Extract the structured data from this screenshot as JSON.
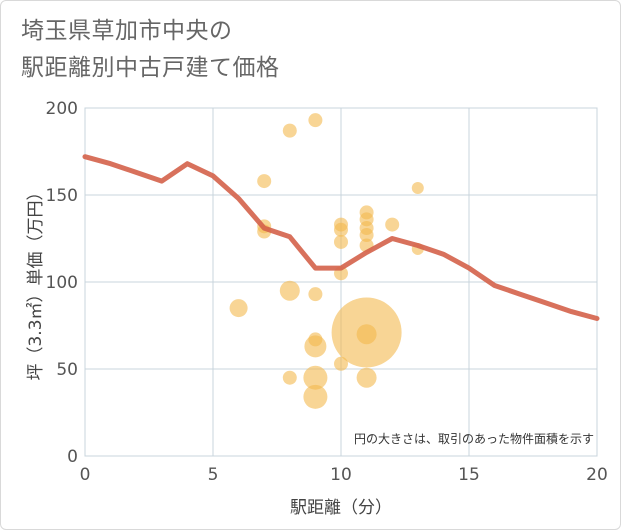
{
  "title_lines": [
    "埼玉県草加市中央の",
    "駅距離別中古戸建て価格"
  ],
  "chart_data": {
    "type": "scatter",
    "title": "埼玉県草加市中央の駅距離別中古戸建て価格",
    "xlabel": "駅距離（分）",
    "ylabel": "坪（3.3㎡）単価（万円）",
    "xlim": [
      0,
      20
    ],
    "ylim": [
      0,
      200
    ],
    "xticks": [
      0,
      5,
      10,
      15,
      20
    ],
    "yticks": [
      0,
      50,
      100,
      150,
      200
    ],
    "grid": true,
    "note": "円の大きさは、取引のあった物件面積を示す",
    "colors": {
      "points": "#f3b94f",
      "line": "#d4624a",
      "grid": "#c8d4dc"
    },
    "points": [
      {
        "x": 6,
        "y": 85,
        "size": 9
      },
      {
        "x": 7,
        "y": 158,
        "size": 7
      },
      {
        "x": 7,
        "y": 132,
        "size": 7
      },
      {
        "x": 7,
        "y": 129,
        "size": 7
      },
      {
        "x": 8,
        "y": 187,
        "size": 7
      },
      {
        "x": 8,
        "y": 95,
        "size": 10
      },
      {
        "x": 8,
        "y": 45,
        "size": 7
      },
      {
        "x": 9,
        "y": 193,
        "size": 7
      },
      {
        "x": 9,
        "y": 93,
        "size": 7
      },
      {
        "x": 9,
        "y": 67,
        "size": 7
      },
      {
        "x": 9,
        "y": 63,
        "size": 11
      },
      {
        "x": 9,
        "y": 45,
        "size": 12
      },
      {
        "x": 9,
        "y": 34,
        "size": 12
      },
      {
        "x": 10,
        "y": 133,
        "size": 7
      },
      {
        "x": 10,
        "y": 130,
        "size": 7
      },
      {
        "x": 10,
        "y": 123,
        "size": 7
      },
      {
        "x": 10,
        "y": 105,
        "size": 7
      },
      {
        "x": 10,
        "y": 53,
        "size": 7
      },
      {
        "x": 11,
        "y": 140,
        "size": 7
      },
      {
        "x": 11,
        "y": 136,
        "size": 7
      },
      {
        "x": 11,
        "y": 131,
        "size": 7
      },
      {
        "x": 11,
        "y": 127,
        "size": 7
      },
      {
        "x": 11,
        "y": 121,
        "size": 7
      },
      {
        "x": 11,
        "y": 71,
        "size": 35
      },
      {
        "x": 11,
        "y": 70,
        "size": 10
      },
      {
        "x": 11,
        "y": 45,
        "size": 10
      },
      {
        "x": 12,
        "y": 133,
        "size": 7
      },
      {
        "x": 13,
        "y": 154,
        "size": 6
      },
      {
        "x": 13,
        "y": 119,
        "size": 6
      }
    ],
    "line": {
      "x": [
        0,
        1,
        2,
        3,
        4,
        5,
        6,
        7,
        8,
        9,
        10,
        11,
        12,
        13,
        14,
        15,
        16,
        17,
        18,
        19,
        20
      ],
      "y": [
        172,
        168,
        163,
        158,
        168,
        161,
        148,
        131,
        126,
        108,
        108,
        117,
        125,
        121,
        116,
        108,
        98,
        93,
        88,
        83,
        79
      ]
    }
  }
}
